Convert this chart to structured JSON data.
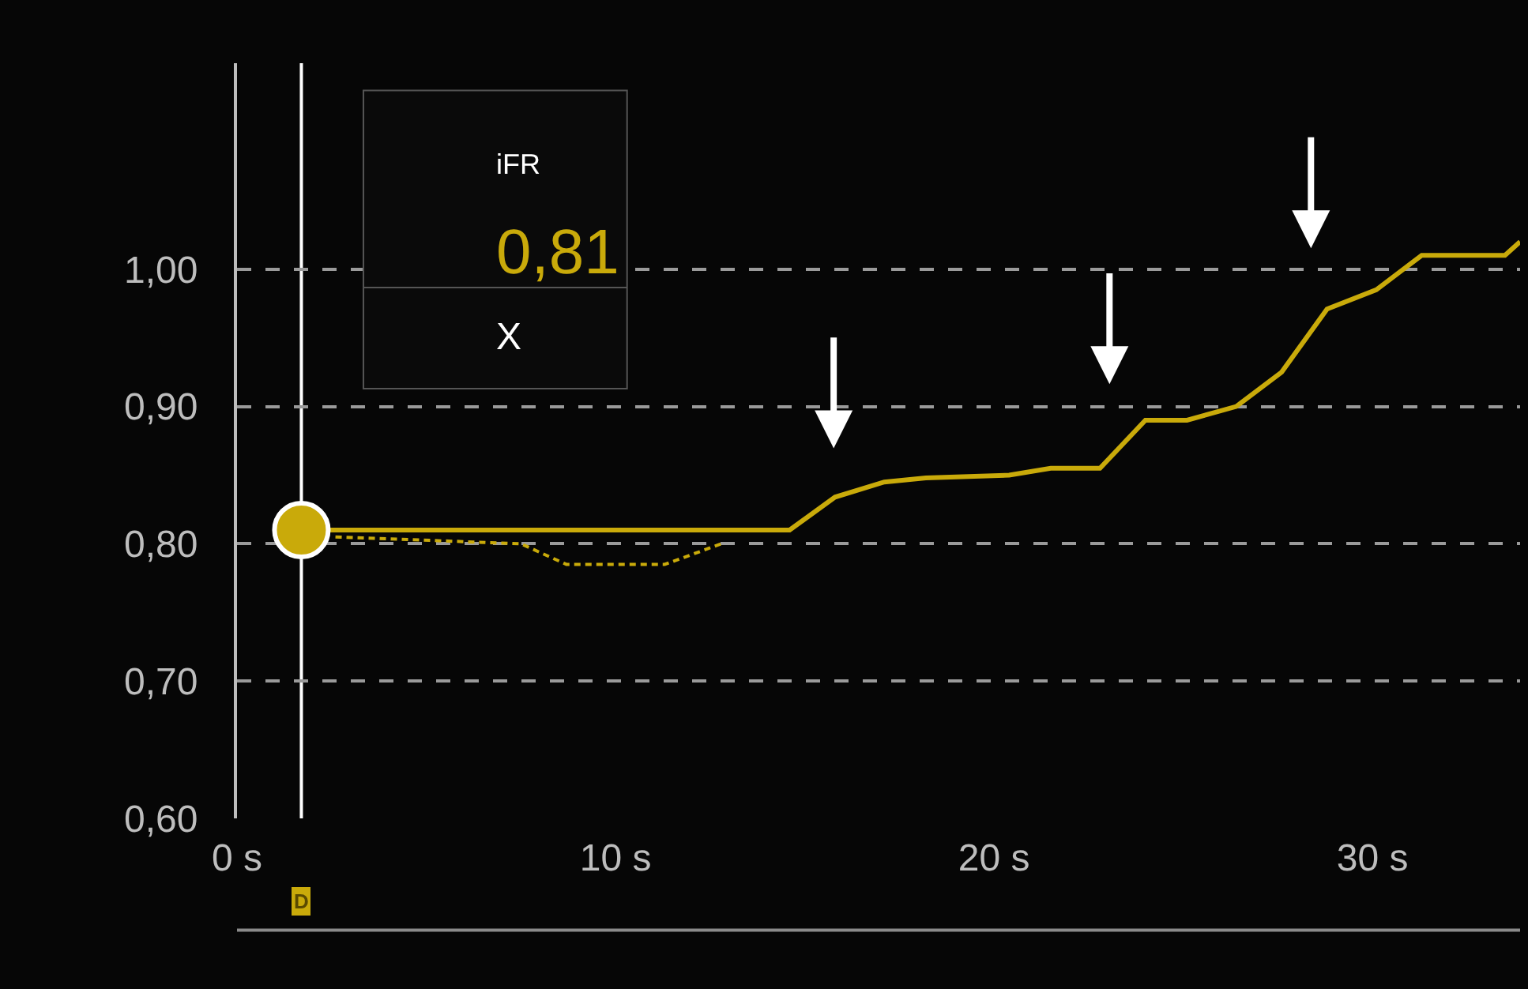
{
  "chart_data": {
    "type": "line",
    "series": [
      {
        "color": "#c9aa0a",
        "line_style": "solid",
        "x": [
          2.4,
          14.6,
          15.8,
          17.1,
          18.2,
          20.4,
          21.5,
          22.8,
          24.0,
          25.1,
          26.4,
          27.6,
          28.8,
          30.1,
          31.3,
          33.5,
          33.9
        ],
        "values": [
          0.81,
          0.81,
          0.834,
          0.845,
          0.848,
          0.85,
          0.855,
          0.855,
          0.89,
          0.89,
          0.9,
          0.925,
          0.971,
          0.985,
          1.01,
          1.01,
          1.02
        ]
      },
      {
        "type": "line",
        "color": "#c9aa0a",
        "line_style": "dashed",
        "x": [
          2.6,
          7.5,
          8.7,
          10.0,
          11.3,
          12.8
        ],
        "values": [
          0.805,
          0.8,
          0.785,
          0.785,
          0.785,
          0.8
        ]
      },
      {
        "type": "scatter",
        "color": "#c9aa0a",
        "marker": "circle",
        "x": [
          1.7
        ],
        "values": [
          0.81
        ]
      }
    ],
    "xlim": [
      0,
      33.9
    ],
    "ylim": [
      0.6,
      1.15
    ],
    "xticks": [
      {
        "value": 0,
        "label": "0 s"
      },
      {
        "value": 10,
        "label": "10 s"
      },
      {
        "value": 20,
        "label": "20 s"
      },
      {
        "value": 30,
        "label": "30 s"
      }
    ],
    "yticks": [
      {
        "value": 0.6,
        "label": "0,60"
      },
      {
        "value": 0.7,
        "label": "0,70"
      },
      {
        "value": 0.8,
        "label": "0,80"
      },
      {
        "value": 0.9,
        "label": "0,90"
      },
      {
        "value": 1.0,
        "label": "1,00"
      }
    ],
    "grid": "y",
    "ref_lines": [
      {
        "axis": "x",
        "value": 1.7,
        "color": "#ffffff"
      }
    ],
    "annotations": [
      "iFR",
      "0,81",
      "X",
      "D"
    ]
  }
}
